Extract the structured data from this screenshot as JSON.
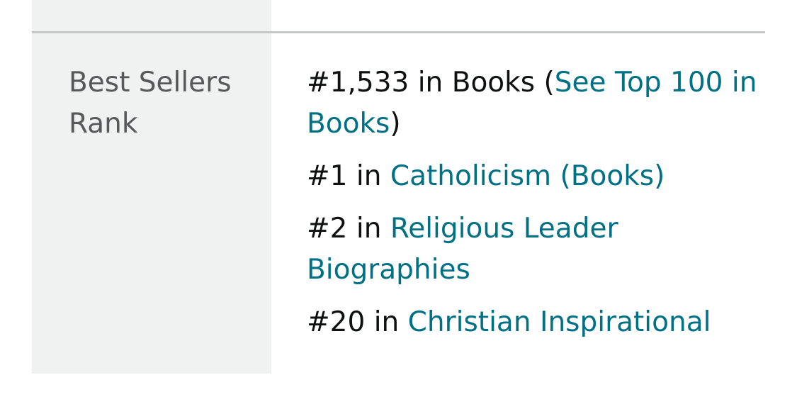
{
  "details": {
    "best_sellers_rank": {
      "label": "Best Sellers Rank",
      "entries": [
        {
          "rank": "#1,533",
          "connector": " in ",
          "category": "Books",
          "open_paren": " (",
          "link_text": "See Top 100 in Books",
          "close_paren": ")"
        },
        {
          "rank": "#1",
          "connector": " in ",
          "link_text": "Catholicism (Books)"
        },
        {
          "rank": "#2",
          "connector": " in ",
          "link_text": "Religious Leader Biographies"
        },
        {
          "rank": "#20",
          "connector": " in ",
          "link_text": "Christian Inspirational"
        }
      ]
    }
  },
  "colors": {
    "label_background": "#f0f2f2",
    "label_text": "#565959",
    "body_text": "#0f1111",
    "link": "#007185",
    "divider": "#c6c8c8"
  }
}
